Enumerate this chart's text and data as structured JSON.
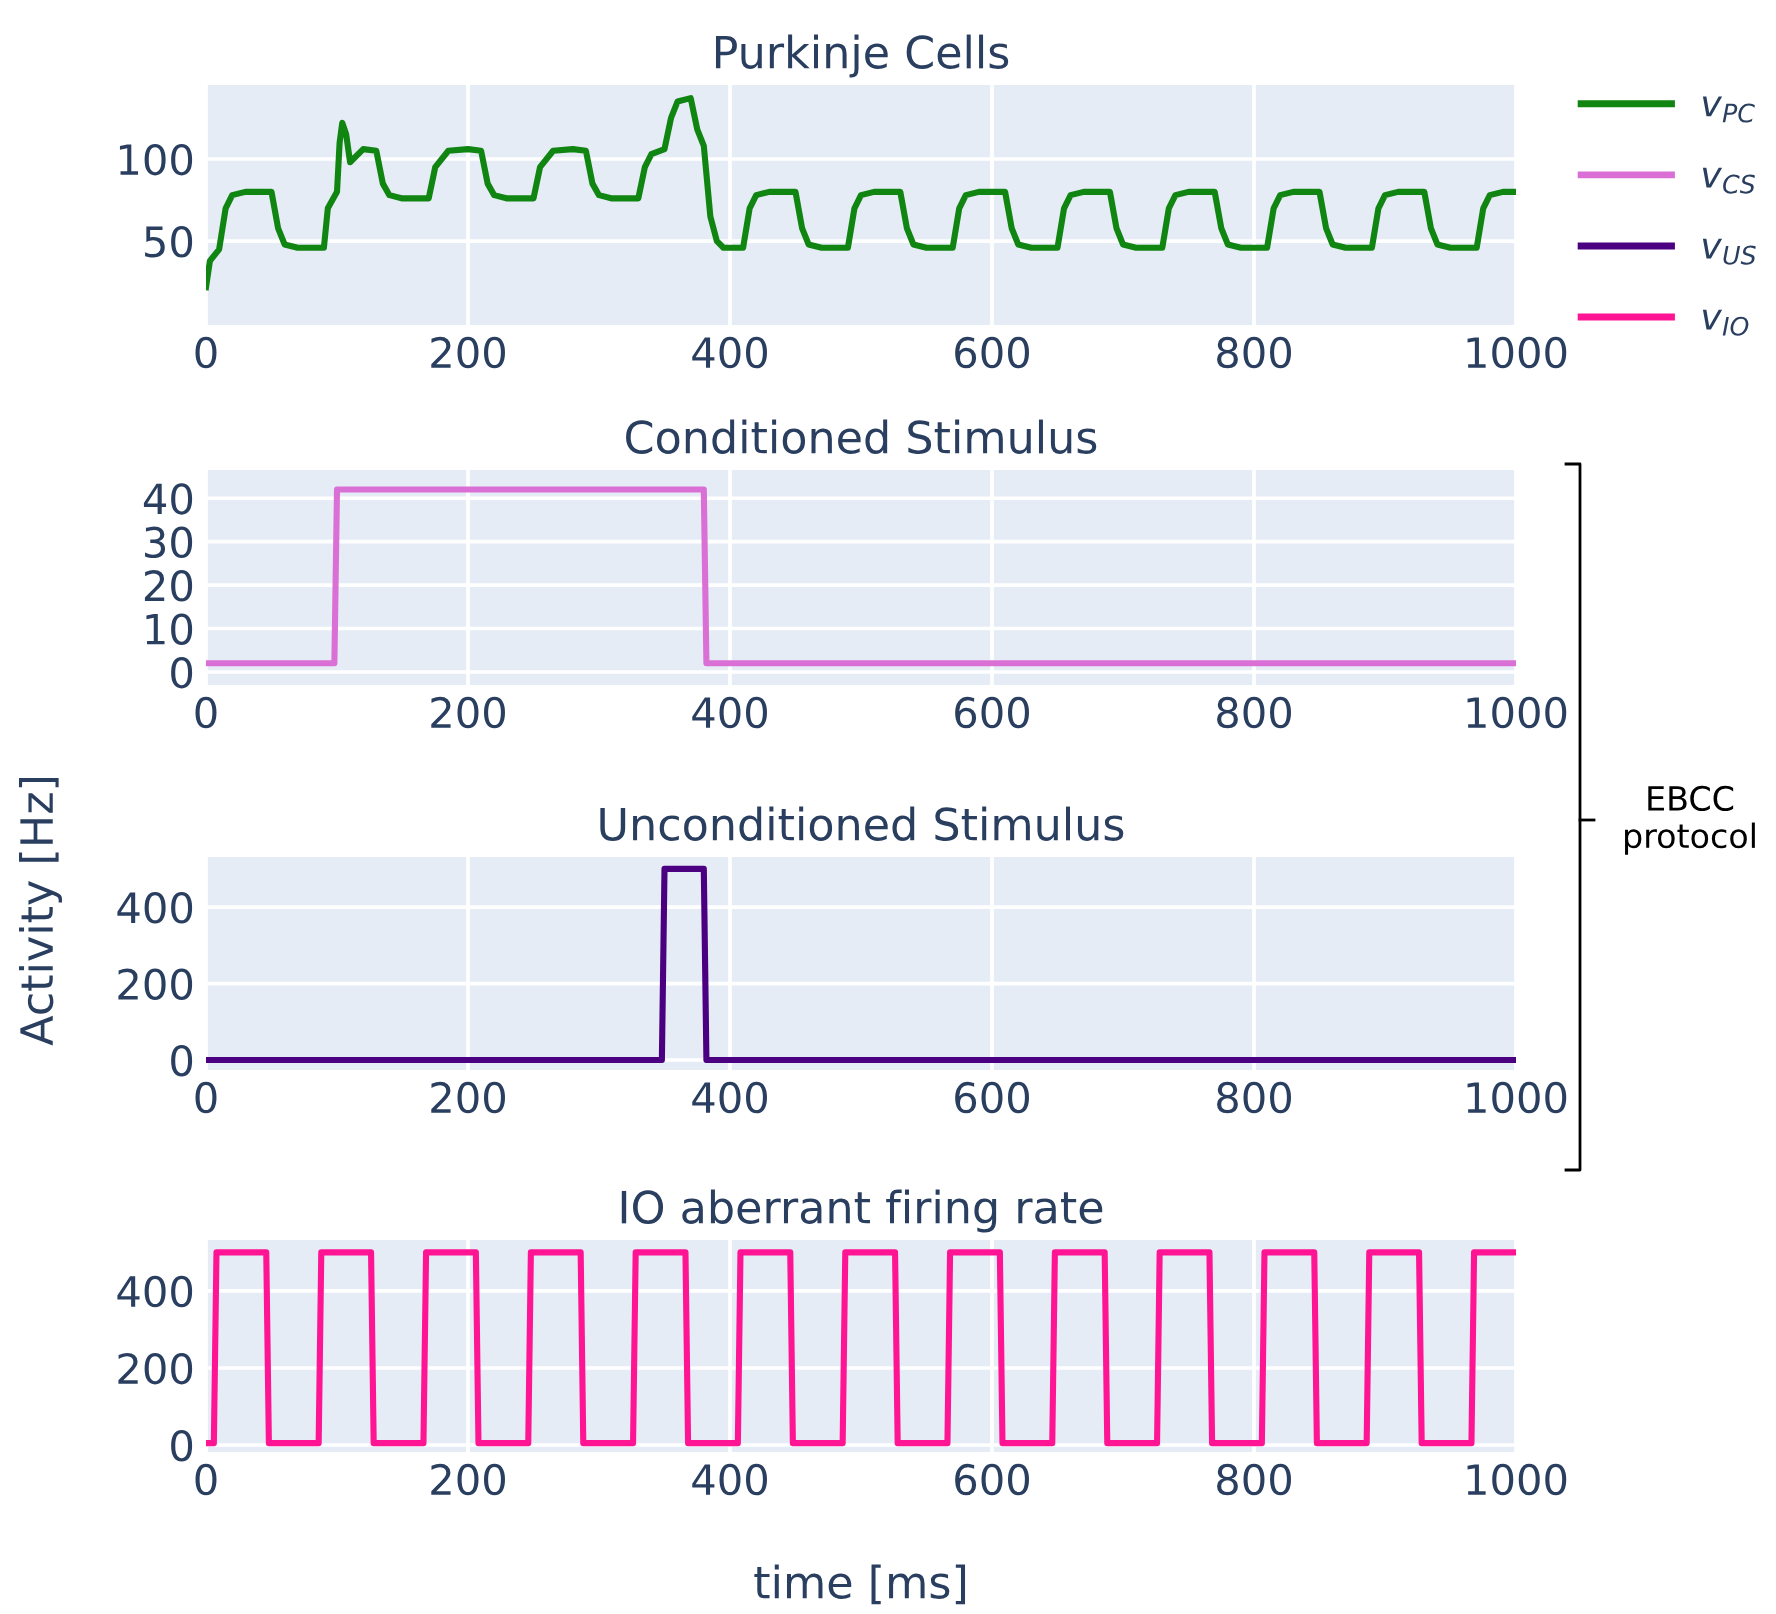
{
  "chart_data": [
    {
      "type": "line",
      "title": "Purkinje Cells",
      "xlim": [
        0,
        1000
      ],
      "xticks": [
        0,
        200,
        400,
        600,
        800,
        1000
      ],
      "ylim": [
        -1,
        145
      ],
      "yticks": [
        50,
        100
      ],
      "grid": true,
      "legend": "right",
      "series": [
        {
          "name": "v$_{PC}$",
          "color": "#118511",
          "x": [
            0,
            3,
            10,
            15,
            20,
            30,
            50,
            55,
            60,
            70,
            90,
            93,
            100,
            102,
            104,
            107,
            110,
            120,
            130,
            135,
            140,
            150,
            170,
            175,
            185,
            200,
            210,
            215,
            220,
            230,
            250,
            255,
            265,
            280,
            290,
            295,
            300,
            310,
            330,
            335,
            340,
            350,
            355,
            360,
            370,
            375,
            380,
            385,
            390,
            395,
            410,
            415,
            420,
            430,
            450,
            455,
            460,
            470,
            490,
            495,
            500,
            510,
            530,
            535,
            540,
            550,
            570,
            575,
            580,
            590,
            610,
            615,
            620,
            630,
            650,
            655,
            660,
            670,
            690,
            695,
            700,
            710,
            730,
            735,
            740,
            750,
            770,
            775,
            780,
            790,
            810,
            815,
            820,
            830,
            850,
            855,
            860,
            870,
            890,
            895,
            900,
            910,
            930,
            935,
            940,
            950,
            970,
            975,
            980,
            990,
            1000
          ],
          "values": [
            22,
            38,
            45,
            70,
            78,
            80,
            80,
            58,
            48,
            46,
            46,
            70,
            80,
            110,
            122,
            115,
            98,
            106,
            105,
            85,
            78,
            76,
            76,
            95,
            105,
            106,
            105,
            85,
            78,
            76,
            76,
            95,
            105,
            106,
            105,
            85,
            78,
            76,
            76,
            95,
            103,
            106,
            125,
            135,
            137,
            118,
            108,
            65,
            50,
            46,
            46,
            70,
            78,
            80,
            80,
            58,
            48,
            46,
            46,
            70,
            78,
            80,
            80,
            58,
            48,
            46,
            46,
            70,
            78,
            80,
            80,
            58,
            48,
            46,
            46,
            70,
            78,
            80,
            80,
            58,
            48,
            46,
            46,
            70,
            78,
            80,
            80,
            58,
            48,
            46,
            46,
            70,
            78,
            80,
            80,
            58,
            48,
            46,
            46,
            70,
            78,
            80,
            80,
            58,
            48,
            46,
            46,
            70,
            78,
            80,
            80
          ]
        }
      ]
    },
    {
      "type": "line",
      "title": "Conditioned Stimulus",
      "ylabel": "Activity [Hz]",
      "xlim": [
        0,
        1000
      ],
      "xticks": [
        0,
        200,
        400,
        600,
        800,
        1000
      ],
      "ylim": [
        -3,
        46.5
      ],
      "yticks": [
        0,
        10,
        20,
        30,
        40
      ],
      "grid": true,
      "legend": "right",
      "annotations": [
        "EBCC\nprotocol"
      ],
      "series": [
        {
          "name": "v$_{CS}$",
          "color": "#da70d6",
          "x": [
            0,
            98,
            100,
            380,
            382,
            1000
          ],
          "values": [
            2,
            2,
            42,
            42,
            2,
            2
          ]
        }
      ]
    },
    {
      "type": "line",
      "title": "Unconditioned Stimulus",
      "xlim": [
        0,
        1000
      ],
      "xticks": [
        0,
        200,
        400,
        600,
        800,
        1000
      ],
      "ylim": [
        -26,
        531
      ],
      "yticks": [
        0,
        200,
        400
      ],
      "grid": true,
      "legend": "right",
      "series": [
        {
          "name": "v$_{US}$",
          "color": "#4b0082",
          "x": [
            0,
            348,
            350,
            380,
            382,
            1000
          ],
          "values": [
            0,
            0,
            500,
            500,
            0,
            0
          ]
        }
      ]
    },
    {
      "type": "line",
      "title": "IO aberrant firing rate",
      "xlabel": "time [ms]",
      "xlim": [
        0,
        1000
      ],
      "xticks": [
        0,
        200,
        400,
        600,
        800,
        1000
      ],
      "ylim": [
        -18,
        532
      ],
      "yticks": [
        0,
        200,
        400
      ],
      "grid": true,
      "legend": "right",
      "series": [
        {
          "name": "v$_{IO}$",
          "color": "#ff1493",
          "x": [
            0,
            6,
            8,
            46,
            48,
            86,
            88,
            126,
            128,
            166,
            168,
            206,
            208,
            246,
            248,
            286,
            288,
            326,
            328,
            366,
            368,
            406,
            408,
            446,
            448,
            486,
            488,
            526,
            528,
            566,
            568,
            606,
            608,
            646,
            648,
            686,
            688,
            726,
            728,
            766,
            768,
            806,
            808,
            846,
            848,
            886,
            888,
            926,
            928,
            966,
            968,
            1000
          ],
          "values": [
            5,
            5,
            500,
            500,
            5,
            5,
            500,
            500,
            5,
            5,
            500,
            500,
            5,
            5,
            500,
            500,
            5,
            5,
            500,
            500,
            5,
            5,
            500,
            500,
            5,
            5,
            500,
            500,
            5,
            5,
            500,
            500,
            5,
            5,
            500,
            500,
            5,
            5,
            500,
            500,
            5,
            5,
            500,
            500,
            5,
            5,
            500,
            500,
            5,
            5,
            500,
            500
          ]
        }
      ]
    }
  ]
}
